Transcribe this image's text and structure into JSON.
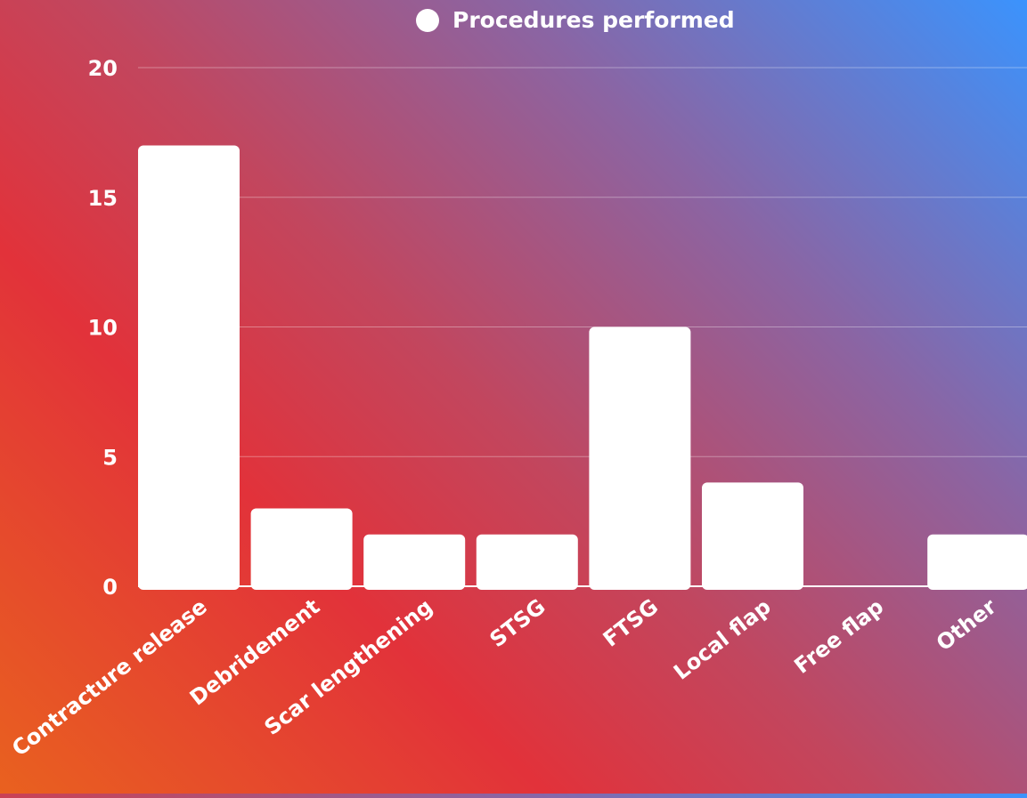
{
  "chart_data": {
    "type": "bar",
    "categories": [
      "Contracture release",
      "Debridement",
      "Scar lengthening",
      "STSG",
      "FTSG",
      "Local flap",
      "Free flap",
      "Other"
    ],
    "series": [
      {
        "name": "Procedures performed",
        "values": [
          17,
          3,
          2,
          2,
          10,
          4,
          0,
          2
        ]
      }
    ],
    "yticks": [
      "0",
      "5",
      "10",
      "15",
      "20"
    ],
    "ylim": [
      0,
      20
    ],
    "grid": true,
    "legend": "top",
    "colors": {
      "bar": "#ffffff",
      "text": "#ffffff",
      "grid": "rgba(255,255,255,0.35)"
    }
  }
}
